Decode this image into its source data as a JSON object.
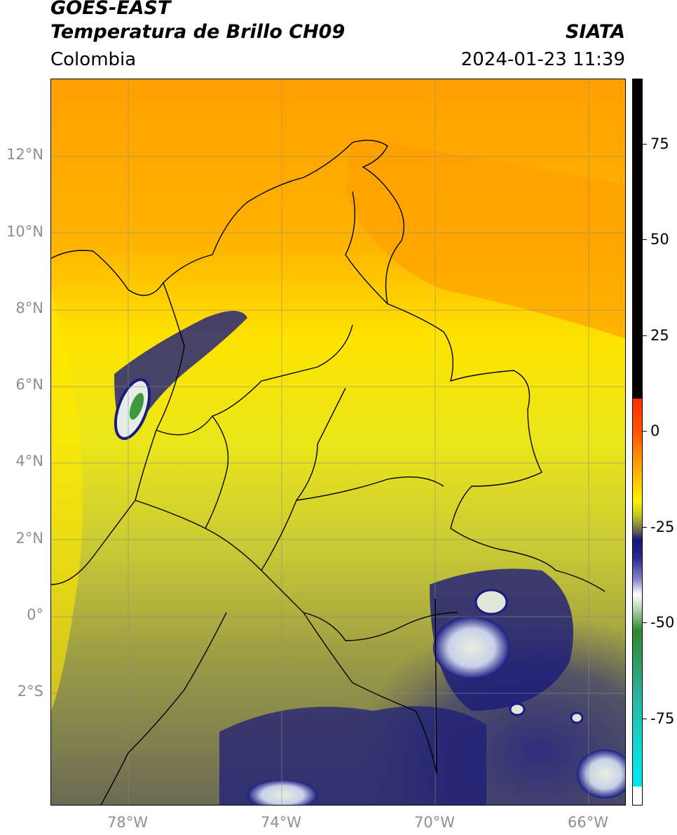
{
  "header": {
    "title_line1": "GOES-EAST",
    "title_line2": "Temperatura de Brillo CH09",
    "region": "Colombia",
    "source": "SIATA",
    "datetime": "2024-01-23 11:39"
  },
  "map": {
    "lat_labels": [
      "12°N",
      "10°N",
      "8°N",
      "6°N",
      "4°N",
      "2°N",
      "0°",
      "2°S"
    ],
    "lon_labels": [
      "78°W",
      "74°W",
      "70°W",
      "66°W"
    ],
    "gridlines": true
  },
  "colorbar": {
    "ticks": [
      "75",
      "50",
      "25",
      "0",
      "-25",
      "-50",
      "-75"
    ],
    "colors": {
      "black": "#000000",
      "red": "#ff2a00",
      "orange": "#ffa000",
      "yellow": "#fff200",
      "olive": "#8a8a3a",
      "gray": "#555560",
      "navy": "#14147a",
      "white": "#ffffff",
      "green": "#2e8a2e",
      "teal": "#2ab4a0",
      "cyan": "#00e5e5"
    }
  }
}
